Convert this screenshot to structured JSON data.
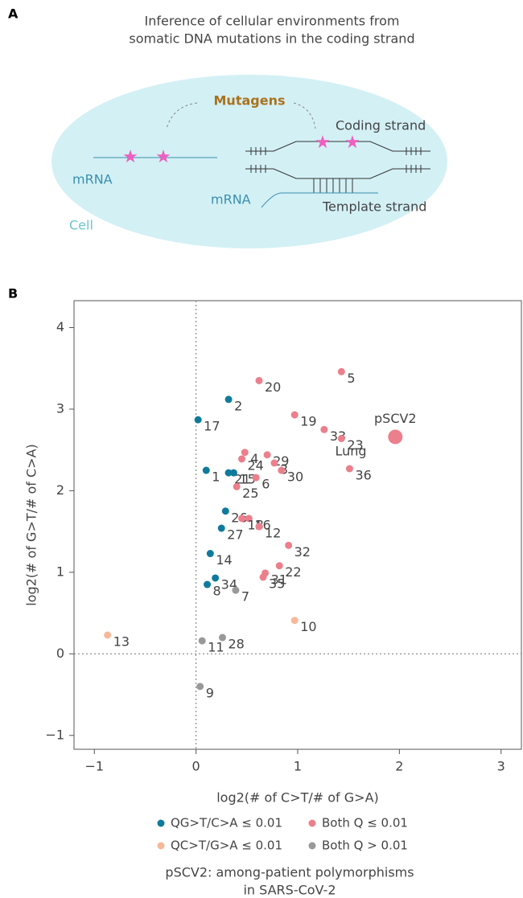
{
  "panel_a": {
    "label": "A",
    "title_line1": "Inference of cellular environments from",
    "title_line2": "somatic DNA mutations in the coding strand",
    "mutagens": "Mutagens",
    "mrna_left": "mRNA",
    "mrna_right": "mRNA",
    "coding_strand": "Coding strand",
    "template_strand": "Template strand",
    "cell": "Cell"
  },
  "chart_data": {
    "type": "scatter",
    "panel_label": "B",
    "x_label": "log2(# of C>T/# of G>A)",
    "y_label": "log2(# of G>T/# of C>A)",
    "xlim": [
      -1.2,
      3.2
    ],
    "ylim": [
      -1.17,
      4.33
    ],
    "xticks": [
      {
        "value": -1,
        "label": "−1"
      },
      0,
      1,
      2,
      3
    ],
    "yticks": [
      {
        "value": -1,
        "label": "−1"
      },
      0,
      1,
      2,
      3,
      4
    ],
    "zero_lines": true,
    "series": [
      {
        "name": "QG>T/C>A ≤ 0.01",
        "color": "#0f7b9c",
        "labels": [
          "17",
          "2",
          "1",
          "21",
          "15",
          "26",
          "27",
          "14",
          "34",
          "8"
        ],
        "x": [
          0.02,
          0.32,
          0.1,
          0.32,
          0.37,
          0.29,
          0.25,
          0.14,
          0.19,
          0.11
        ],
        "values": [
          2.87,
          3.12,
          2.25,
          2.22,
          2.22,
          1.75,
          1.54,
          1.23,
          0.93,
          0.85
        ]
      },
      {
        "name": "QC>T/G>A ≤ 0.01",
        "color": "#f7b898",
        "labels": [
          "13",
          "10"
        ],
        "x": [
          -0.87,
          0.97
        ],
        "values": [
          0.23,
          0.41
        ]
      },
      {
        "name": "Both Q ≤ 0.01",
        "color": "#ec7f8c",
        "labels": [
          "20",
          "5",
          "19",
          "33",
          "23",
          "36",
          "4",
          "24",
          "29",
          "3",
          "6",
          "30",
          "25",
          "16",
          "18",
          "12",
          "32",
          "31",
          "35",
          "22"
        ],
        "x": [
          0.62,
          1.43,
          0.97,
          1.26,
          1.43,
          1.51,
          0.48,
          0.45,
          0.7,
          0.77,
          0.59,
          0.84,
          0.4,
          0.52,
          0.45,
          0.62,
          0.91,
          0.68,
          0.66,
          0.82
        ],
        "values": [
          3.35,
          3.46,
          2.93,
          2.75,
          2.64,
          2.27,
          2.47,
          2.39,
          2.44,
          2.34,
          2.16,
          2.25,
          2.05,
          1.66,
          1.66,
          1.56,
          1.33,
          0.99,
          0.94,
          1.08
        ]
      },
      {
        "name": "Both Q > 0.01",
        "color": "#999999",
        "labels": [
          "7",
          "11",
          "28",
          "9"
        ],
        "x": [
          0.39,
          0.06,
          0.26,
          0.04
        ],
        "values": [
          0.78,
          0.16,
          0.2,
          -0.4
        ]
      }
    ],
    "highlight": {
      "label": "pSCV2",
      "color": "#ec7f8c",
      "x": 1.96,
      "value": 2.66
    },
    "annotation": "Lung",
    "note_line1": "pSCV2: among-patient polymorphisms",
    "note_line2": "in SARS-CoV-2"
  }
}
